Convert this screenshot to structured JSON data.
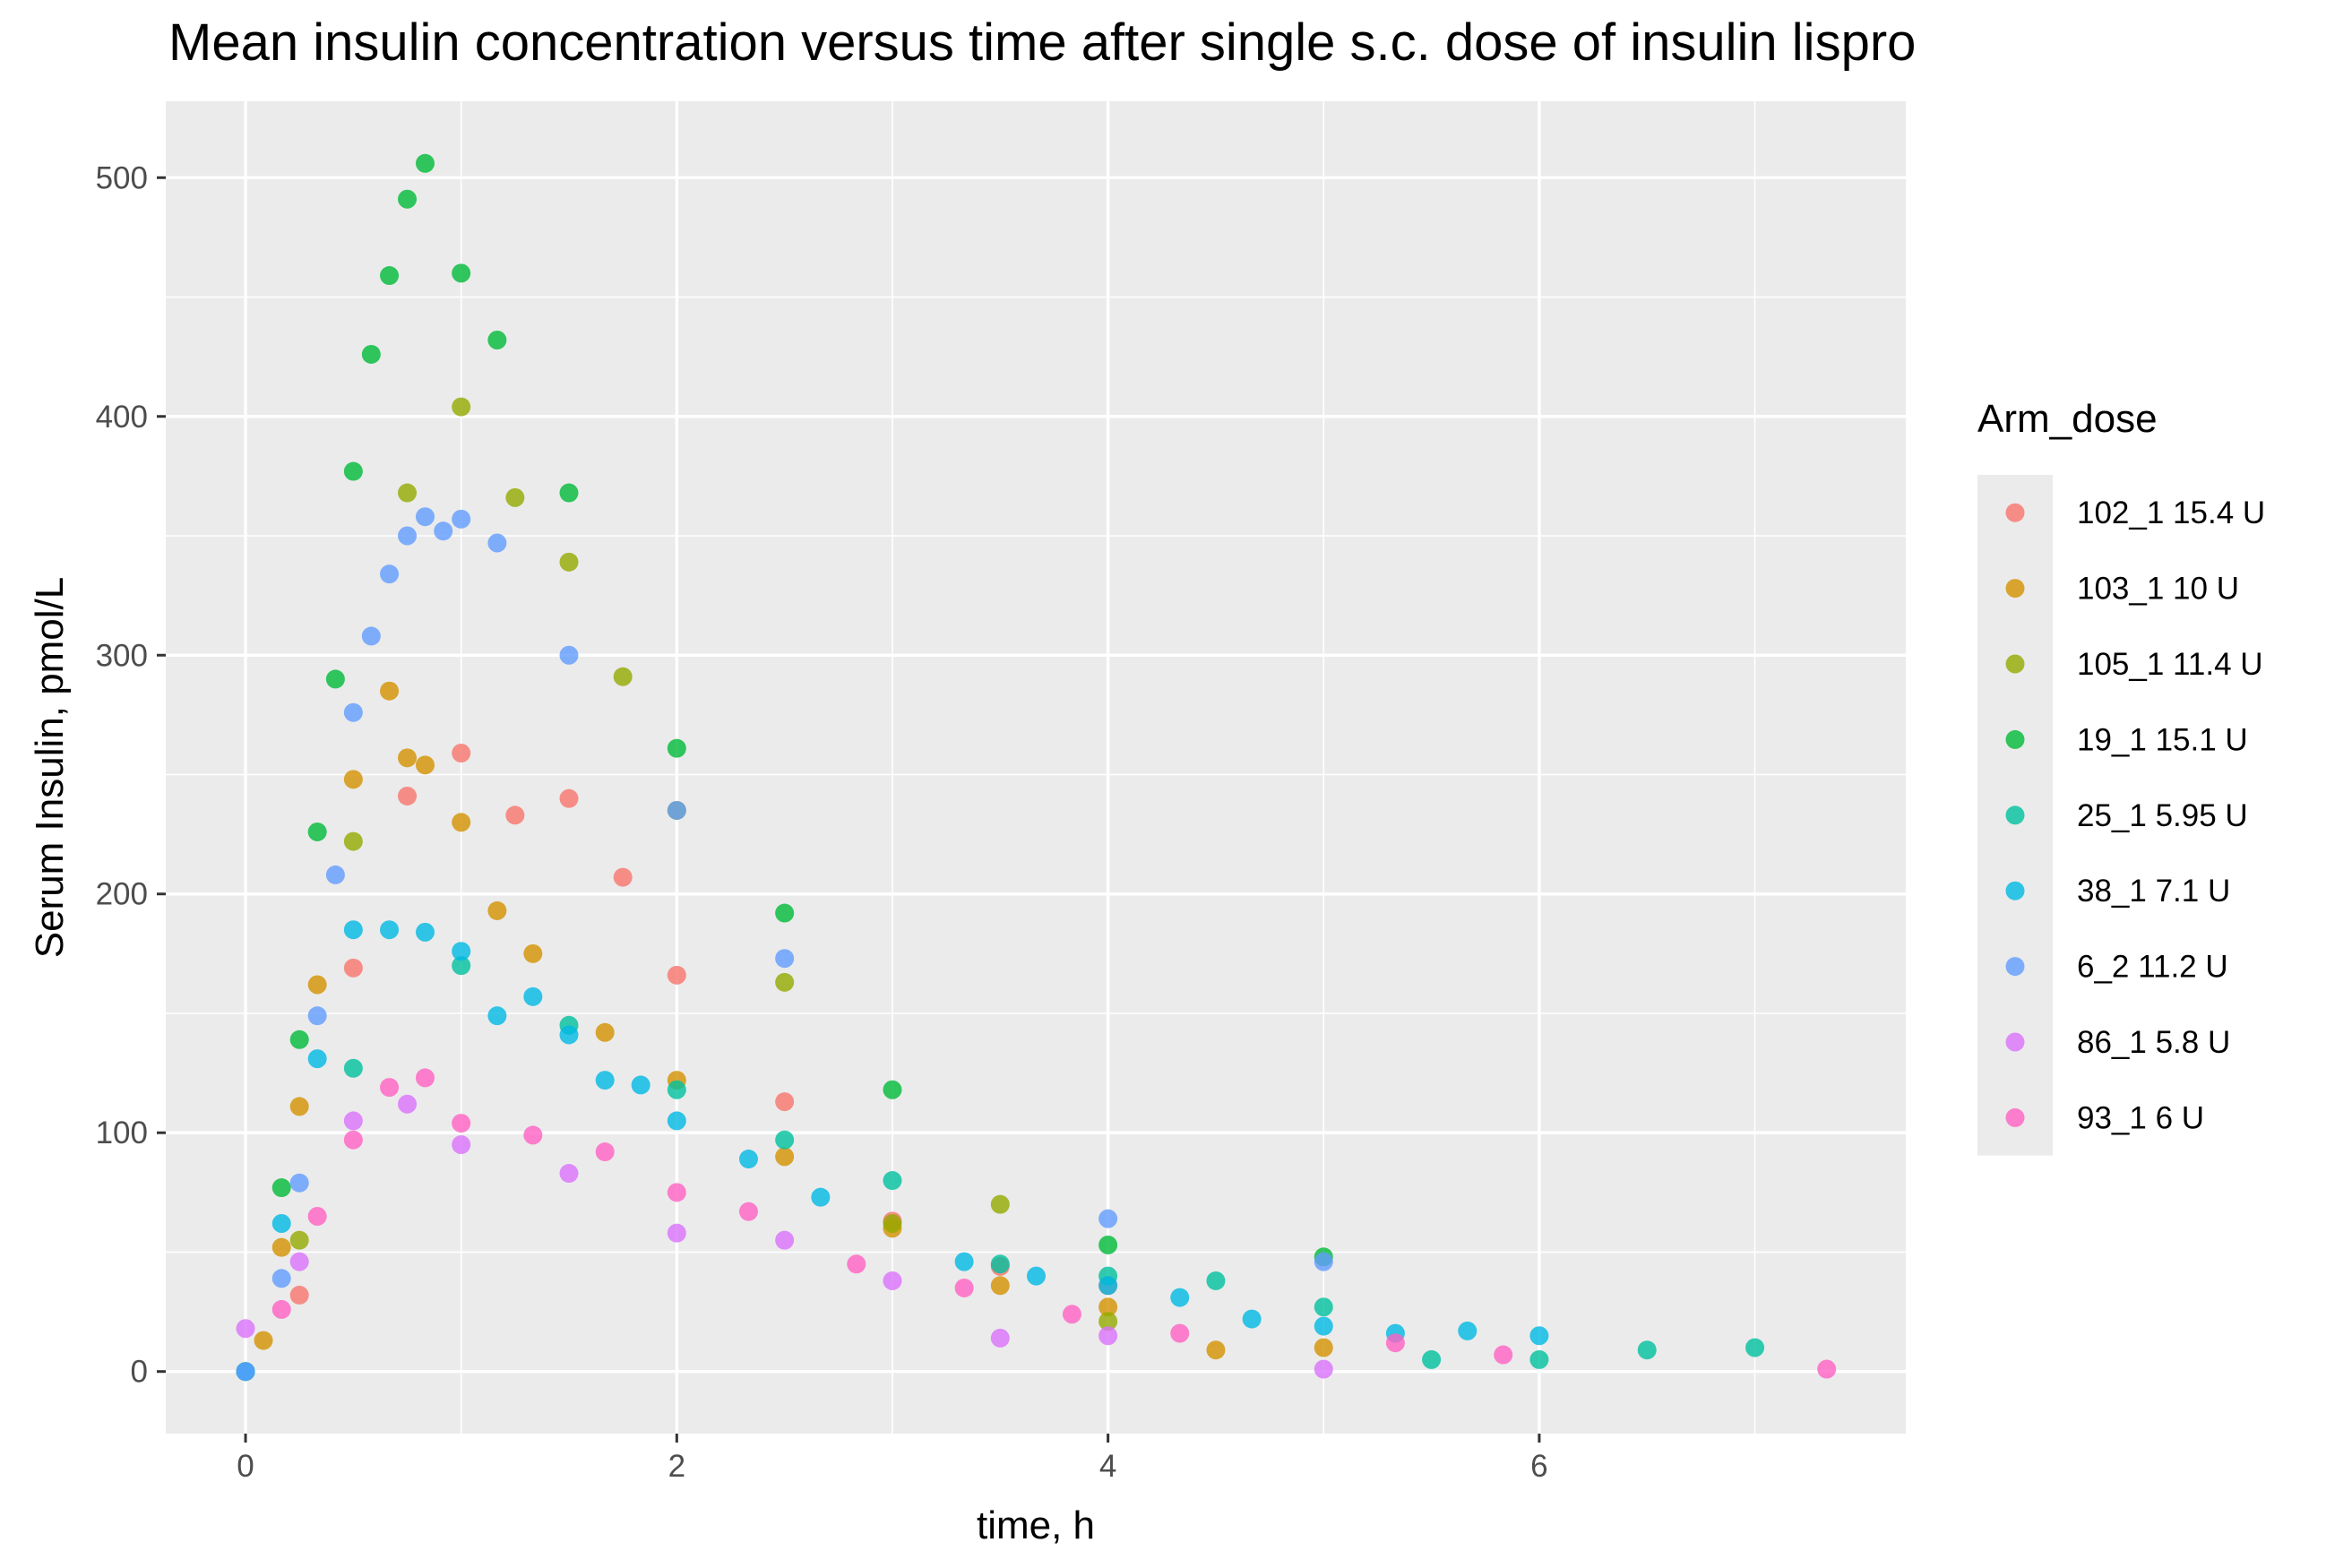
{
  "chart_data": {
    "type": "scatter",
    "title": "Mean insulin concentration versus time after single s.c. dose of insulin lispro",
    "xlabel": "time, h",
    "ylabel": "Serum Insulin, pmol/L",
    "xlim": [
      -0.37,
      7.7
    ],
    "ylim": [
      -26,
      532
    ],
    "xticks": [
      0,
      2,
      4,
      6
    ],
    "yticks": [
      0,
      100,
      200,
      300,
      400,
      500
    ],
    "grid": true,
    "background": "#ebebeb",
    "legend": {
      "title": "Arm_dose",
      "position": "right"
    },
    "series": [
      {
        "name": "102_1 15.4 U",
        "color": "#F8766D",
        "points": [
          [
            0,
            0
          ],
          [
            0.25,
            32
          ],
          [
            0.5,
            169
          ],
          [
            0.75,
            241
          ],
          [
            1,
            259
          ],
          [
            1.25,
            233
          ],
          [
            1.5,
            240
          ],
          [
            1.75,
            207
          ],
          [
            2,
            166
          ],
          [
            2.5,
            113
          ],
          [
            3,
            63
          ],
          [
            3.5,
            44
          ],
          [
            4,
            36
          ]
        ]
      },
      {
        "name": "103_1 10 U",
        "color": "#D39200",
        "points": [
          [
            0,
            0
          ],
          [
            0.083,
            13
          ],
          [
            0.167,
            52
          ],
          [
            0.25,
            111
          ],
          [
            0.333,
            162
          ],
          [
            0.5,
            248
          ],
          [
            0.667,
            285
          ],
          [
            0.75,
            257
          ],
          [
            0.833,
            254
          ],
          [
            1,
            230
          ],
          [
            1.167,
            193
          ],
          [
            1.333,
            175
          ],
          [
            1.667,
            142
          ],
          [
            2,
            122
          ],
          [
            2.5,
            90
          ],
          [
            3,
            60
          ],
          [
            3.5,
            36
          ],
          [
            4,
            27
          ],
          [
            4.5,
            9
          ],
          [
            5,
            10
          ]
        ]
      },
      {
        "name": "105_1 11.4 U",
        "color": "#93AA00",
        "points": [
          [
            0,
            0
          ],
          [
            0.25,
            55
          ],
          [
            0.5,
            222
          ],
          [
            0.75,
            368
          ],
          [
            1,
            404
          ],
          [
            1.25,
            366
          ],
          [
            1.5,
            339
          ],
          [
            1.75,
            291
          ],
          [
            2,
            235
          ],
          [
            2.5,
            163
          ],
          [
            3,
            62
          ],
          [
            3.5,
            70
          ],
          [
            4,
            21
          ]
        ]
      },
      {
        "name": "19_1 15.1 U",
        "color": "#00BA38",
        "points": [
          [
            0,
            0
          ],
          [
            0.167,
            77
          ],
          [
            0.25,
            139
          ],
          [
            0.333,
            226
          ],
          [
            0.417,
            290
          ],
          [
            0.5,
            377
          ],
          [
            0.583,
            426
          ],
          [
            0.667,
            459
          ],
          [
            0.75,
            491
          ],
          [
            0.833,
            506
          ],
          [
            1,
            460
          ],
          [
            1.167,
            432
          ],
          [
            1.5,
            368
          ],
          [
            2,
            261
          ],
          [
            2.5,
            192
          ],
          [
            3,
            118
          ],
          [
            4,
            53
          ],
          [
            5,
            48
          ]
        ]
      },
      {
        "name": "25_1 5.95 U",
        "color": "#00C19F",
        "points": [
          [
            0,
            0
          ],
          [
            0.5,
            127
          ],
          [
            1,
            170
          ],
          [
            1.5,
            145
          ],
          [
            2,
            118
          ],
          [
            2.5,
            97
          ],
          [
            3,
            80
          ],
          [
            3.5,
            45
          ],
          [
            4,
            40
          ],
          [
            4.5,
            38
          ],
          [
            5,
            27
          ],
          [
            5.5,
            5
          ],
          [
            6,
            5
          ],
          [
            6.5,
            9
          ],
          [
            7,
            10
          ]
        ]
      },
      {
        "name": "38_1 7.1 U",
        "color": "#00B9E3",
        "points": [
          [
            0,
            0
          ],
          [
            0.167,
            62
          ],
          [
            0.333,
            131
          ],
          [
            0.5,
            185
          ],
          [
            0.667,
            185
          ],
          [
            0.833,
            184
          ],
          [
            1,
            176
          ],
          [
            1.167,
            149
          ],
          [
            1.333,
            157
          ],
          [
            1.5,
            141
          ],
          [
            1.667,
            122
          ],
          [
            1.833,
            120
          ],
          [
            2,
            105
          ],
          [
            2.333,
            89
          ],
          [
            2.667,
            73
          ],
          [
            3.333,
            46
          ],
          [
            3.667,
            40
          ],
          [
            4,
            36
          ],
          [
            4.333,
            31
          ],
          [
            4.667,
            22
          ],
          [
            5,
            19
          ],
          [
            5.333,
            16
          ],
          [
            5.667,
            17
          ],
          [
            6,
            15
          ]
        ]
      },
      {
        "name": "6_2 11.2 U",
        "color": "#619CFF",
        "points": [
          [
            0,
            0
          ],
          [
            0.167,
            39
          ],
          [
            0.25,
            79
          ],
          [
            0.333,
            149
          ],
          [
            0.417,
            208
          ],
          [
            0.5,
            276
          ],
          [
            0.583,
            308
          ],
          [
            0.667,
            334
          ],
          [
            0.75,
            350
          ],
          [
            0.833,
            358
          ],
          [
            0.917,
            352
          ],
          [
            1,
            357
          ],
          [
            1.167,
            347
          ],
          [
            1.5,
            300
          ],
          [
            2,
            235
          ],
          [
            2.5,
            173
          ],
          [
            4,
            64
          ],
          [
            5,
            46
          ]
        ]
      },
      {
        "name": "86_1 5.8 U",
        "color": "#DB72FB",
        "points": [
          [
            0,
            18
          ],
          [
            0.25,
            46
          ],
          [
            0.5,
            105
          ],
          [
            0.75,
            112
          ],
          [
            1,
            95
          ],
          [
            1.5,
            83
          ],
          [
            2,
            58
          ],
          [
            2.5,
            55
          ],
          [
            3,
            38
          ],
          [
            3.5,
            14
          ],
          [
            4,
            15
          ],
          [
            5,
            1
          ]
        ]
      },
      {
        "name": "93_1 6 U",
        "color": "#FF61C3",
        "points": [
          [
            0.167,
            26
          ],
          [
            0.333,
            65
          ],
          [
            0.5,
            97
          ],
          [
            0.667,
            119
          ],
          [
            0.833,
            123
          ],
          [
            1,
            104
          ],
          [
            1.333,
            99
          ],
          [
            1.667,
            92
          ],
          [
            2,
            75
          ],
          [
            2.333,
            67
          ],
          [
            2.833,
            45
          ],
          [
            3.333,
            35
          ],
          [
            3.833,
            24
          ],
          [
            4.333,
            16
          ],
          [
            5.333,
            12
          ],
          [
            5.833,
            7
          ],
          [
            7.333,
            1
          ]
        ]
      }
    ]
  }
}
